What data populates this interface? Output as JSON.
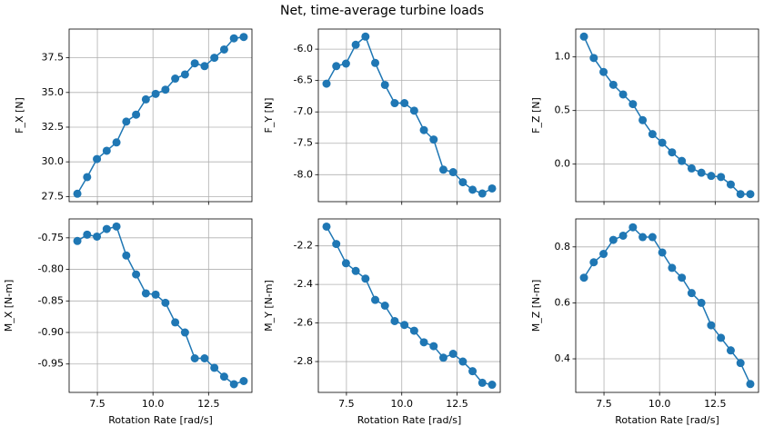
{
  "title": "Net, time-average turbine loads",
  "chart_data": [
    {
      "type": "line",
      "ylabel": "F_X [N]",
      "color": "#1f77b4",
      "grid": true,
      "show_xtick_labels": false,
      "x": [
        6.6,
        7.04,
        7.48,
        7.92,
        8.36,
        8.8,
        9.24,
        9.68,
        10.12,
        10.56,
        11.0,
        11.44,
        11.88,
        12.32,
        12.76,
        13.2,
        13.64,
        14.08
      ],
      "values": [
        27.7,
        28.9,
        30.2,
        30.8,
        31.4,
        32.9,
        33.4,
        34.5,
        34.9,
        35.2,
        36.0,
        36.3,
        37.1,
        36.9,
        37.5,
        38.1,
        38.9,
        39.0
      ],
      "xlim": [
        6.23,
        14.45
      ],
      "xticks": [
        7.5,
        {
          "value": 10,
          "label": "10.0"
        },
        12.5
      ],
      "ylim": [
        27.13,
        39.57
      ],
      "yticks": [
        27.5,
        {
          "value": 30,
          "label": "30.0"
        },
        32.5,
        {
          "value": 35,
          "label": "35.0"
        },
        37.5
      ]
    },
    {
      "type": "line",
      "ylabel": "F_Y [N]",
      "color": "#1f77b4",
      "grid": true,
      "show_xtick_labels": false,
      "x": [
        6.6,
        7.04,
        7.48,
        7.92,
        8.36,
        8.8,
        9.24,
        9.68,
        10.12,
        10.56,
        11.0,
        11.44,
        11.88,
        12.32,
        12.76,
        13.2,
        13.64,
        14.08
      ],
      "values": [
        -6.55,
        -6.27,
        -6.23,
        -5.93,
        -5.8,
        -6.22,
        -6.57,
        -6.86,
        -6.86,
        -6.98,
        -7.29,
        -7.44,
        -7.92,
        -7.96,
        -8.12,
        -8.24,
        -8.3,
        -8.22
      ],
      "xlim": [
        6.23,
        14.45
      ],
      "xticks": [
        7.5,
        {
          "value": 10,
          "label": "10.0"
        },
        12.5
      ],
      "ylim": [
        -8.43,
        -5.68
      ],
      "yticks": [
        {
          "value": -8,
          "label": "-8.0"
        },
        -7.5,
        {
          "value": -7,
          "label": "-7.0"
        },
        -6.5,
        {
          "value": -6,
          "label": "-6.0"
        }
      ]
    },
    {
      "type": "line",
      "ylabel": "F_Z [N]",
      "color": "#1f77b4",
      "grid": true,
      "show_xtick_labels": false,
      "x": [
        6.6,
        7.04,
        7.48,
        7.92,
        8.36,
        8.8,
        9.24,
        9.68,
        10.12,
        10.56,
        11.0,
        11.44,
        11.88,
        12.32,
        12.76,
        13.2,
        13.64,
        14.08
      ],
      "values": [
        1.19,
        0.99,
        0.86,
        0.74,
        0.65,
        0.56,
        0.41,
        0.28,
        0.2,
        0.11,
        0.03,
        -0.04,
        -0.08,
        -0.11,
        -0.12,
        -0.19,
        -0.28,
        -0.28
      ],
      "xlim": [
        6.23,
        14.45
      ],
      "xticks": [
        7.5,
        {
          "value": 10,
          "label": "10.0"
        },
        12.5
      ],
      "ylim": [
        -0.35,
        1.26
      ],
      "yticks": [
        {
          "value": 0,
          "label": "0.0"
        },
        0.5,
        {
          "value": 1,
          "label": "1.0"
        }
      ]
    },
    {
      "type": "line",
      "ylabel": "M_X [N-m]",
      "xlabel": "Rotation Rate [rad/s]",
      "color": "#1f77b4",
      "grid": true,
      "show_xtick_labels": true,
      "x": [
        6.6,
        7.04,
        7.48,
        7.92,
        8.36,
        8.8,
        9.24,
        9.68,
        10.12,
        10.56,
        11.0,
        11.44,
        11.88,
        12.32,
        12.76,
        13.2,
        13.64,
        14.08
      ],
      "values": [
        -0.755,
        -0.745,
        -0.748,
        -0.736,
        -0.732,
        -0.778,
        -0.808,
        -0.838,
        -0.84,
        -0.853,
        -0.884,
        -0.9,
        -0.941,
        -0.941,
        -0.956,
        -0.97,
        -0.982,
        -0.977
      ],
      "xlim": [
        6.23,
        14.45
      ],
      "xticks": [
        7.5,
        {
          "value": 10,
          "label": "10.0"
        },
        12.5
      ],
      "ylim": [
        -0.995,
        -0.72
      ],
      "yticks": [
        -0.95,
        {
          "value": -0.9,
          "label": "-0.90"
        },
        -0.85,
        {
          "value": -0.8,
          "label": "-0.80"
        },
        -0.75
      ]
    },
    {
      "type": "line",
      "ylabel": "M_Y [N-m]",
      "xlabel": "Rotation Rate [rad/s]",
      "color": "#1f77b4",
      "grid": true,
      "show_xtick_labels": true,
      "x": [
        6.6,
        7.04,
        7.48,
        7.92,
        8.36,
        8.8,
        9.24,
        9.68,
        10.12,
        10.56,
        11.0,
        11.44,
        11.88,
        12.32,
        12.76,
        13.2,
        13.64,
        14.08
      ],
      "values": [
        -2.1,
        -2.19,
        -2.29,
        -2.33,
        -2.37,
        -2.48,
        -2.51,
        -2.59,
        -2.61,
        -2.64,
        -2.7,
        -2.72,
        -2.78,
        -2.76,
        -2.8,
        -2.85,
        -2.91,
        -2.92
      ],
      "xlim": [
        6.23,
        14.45
      ],
      "xticks": [
        7.5,
        {
          "value": 10,
          "label": "10.0"
        },
        12.5
      ],
      "ylim": [
        -2.96,
        -2.06
      ],
      "yticks": [
        -2.8,
        -2.6,
        -2.4,
        -2.2
      ]
    },
    {
      "type": "line",
      "ylabel": "M_Z [N-m]",
      "xlabel": "Rotation Rate [rad/s]",
      "color": "#1f77b4",
      "grid": true,
      "show_xtick_labels": true,
      "x": [
        6.6,
        7.04,
        7.48,
        7.92,
        8.36,
        8.8,
        9.24,
        9.68,
        10.12,
        10.56,
        11.0,
        11.44,
        11.88,
        12.32,
        12.76,
        13.2,
        13.64,
        14.08
      ],
      "values": [
        0.69,
        0.745,
        0.775,
        0.825,
        0.84,
        0.87,
        0.835,
        0.835,
        0.78,
        0.725,
        0.69,
        0.635,
        0.6,
        0.52,
        0.475,
        0.43,
        0.385,
        0.31
      ],
      "xlim": [
        6.23,
        14.45
      ],
      "xticks": [
        7.5,
        {
          "value": 10,
          "label": "10.0"
        },
        12.5
      ],
      "ylim": [
        0.28,
        0.9
      ],
      "yticks": [
        0.4,
        0.6,
        0.8
      ]
    }
  ]
}
